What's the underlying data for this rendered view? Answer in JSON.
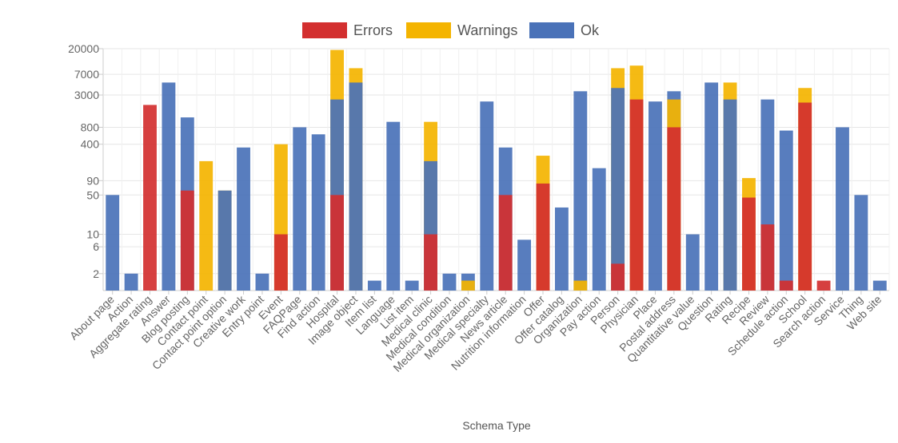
{
  "chart_data": {
    "type": "bar",
    "stacked": "overlay",
    "y_scale": "log",
    "xlabel": "Schema Type",
    "ylabel": "",
    "ylim": [
      1,
      20000
    ],
    "yticks": [
      2,
      6,
      10,
      50,
      90,
      400,
      800,
      3000,
      7000,
      20000
    ],
    "legend_position": "top-center",
    "categories": [
      "About page",
      "Action",
      "Aggregate rating",
      "Answer",
      "Blog posting",
      "Contact point",
      "Contact point option",
      "Creative work",
      "Entry point",
      "Event",
      "FAQPage",
      "Find action",
      "Hospital",
      "Image object",
      "Item list",
      "Language",
      "List item",
      "Medical clinic",
      "Medical condition",
      "Medical organization",
      "Medical specialty",
      "News article",
      "Nutrition information",
      "Offer",
      "Offer catalog",
      "Organization",
      "Pay action",
      "Person",
      "Physician",
      "Place",
      "Postal address",
      "Quantitative value",
      "Question",
      "Rating",
      "Recipe",
      "Review",
      "Schedule action",
      "School",
      "Search action",
      "Service",
      "Thing",
      "Web site"
    ],
    "series": [
      {
        "name": "Errors",
        "color": "#d32f2f",
        "values": [
          0,
          0,
          2000,
          0,
          60,
          0,
          0,
          0,
          0,
          10,
          0,
          0,
          50,
          0,
          0,
          0,
          0,
          10,
          0,
          0,
          0,
          50,
          0,
          80,
          0,
          0,
          0,
          3,
          2500,
          0,
          800,
          0,
          0,
          0,
          45,
          15,
          1.5,
          2200,
          1.5,
          0,
          0,
          0
        ]
      },
      {
        "name": "Warnings",
        "color": "#f4b400",
        "values": [
          0,
          0,
          0,
          0,
          0,
          200,
          60,
          0,
          0,
          400,
          0,
          0,
          19000,
          9000,
          0,
          0,
          0,
          1000,
          0,
          1.5,
          0,
          0,
          0,
          250,
          0,
          1.5,
          0,
          9000,
          10000,
          0,
          2500,
          0,
          0,
          5000,
          100,
          0,
          0,
          4000,
          0,
          0,
          0,
          0
        ]
      },
      {
        "name": "Ok",
        "color": "#4a72b8",
        "values": [
          50,
          2,
          0,
          5000,
          1200,
          0,
          60,
          350,
          2,
          0,
          800,
          600,
          2500,
          5000,
          1.5,
          1000,
          1.5,
          200,
          2,
          2,
          2300,
          350,
          8,
          0,
          30,
          3500,
          150,
          4000,
          0,
          2300,
          3500,
          10,
          5000,
          2500,
          0,
          2500,
          700,
          0,
          0,
          800,
          50,
          1.5
        ]
      }
    ]
  }
}
